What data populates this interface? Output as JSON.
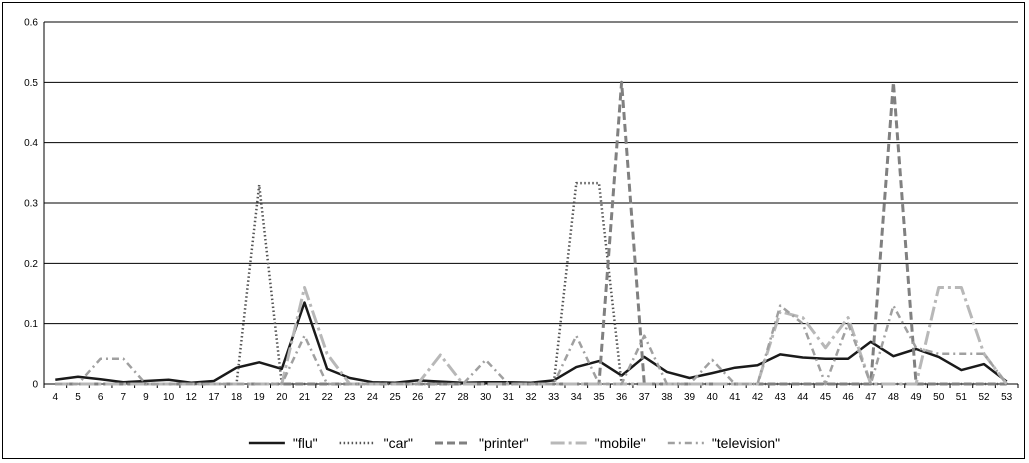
{
  "chart_data": {
    "type": "line",
    "title": "",
    "xlabel": "",
    "ylabel": "",
    "categories": [
      "4",
      "5",
      "6",
      "7",
      "9",
      "10",
      "12",
      "17",
      "18",
      "19",
      "20",
      "21",
      "22",
      "23",
      "24",
      "25",
      "26",
      "27",
      "28",
      "30",
      "31",
      "32",
      "33",
      "34",
      "35",
      "36",
      "37",
      "38",
      "39",
      "40",
      "41",
      "42",
      "43",
      "44",
      "45",
      "46",
      "47",
      "48",
      "49",
      "50",
      "51",
      "52",
      "53"
    ],
    "ylim": [
      0,
      0.6
    ],
    "yticks": [
      0,
      0.1,
      0.2,
      0.3,
      0.4,
      0.5,
      0.6
    ],
    "ytick_labels": [
      "0",
      "0.1",
      "0.2",
      "0.3",
      "0.4",
      "0.5",
      "0.6"
    ],
    "grid": "horizontal",
    "legend_position": "bottom",
    "series": [
      {
        "name": "\"flu\"",
        "color": "#1a1a1a",
        "style": "solid",
        "values": [
          0.007,
          0.012,
          0.008,
          0.003,
          0.005,
          0.007,
          0.002,
          0.005,
          0.027,
          0.036,
          0.025,
          0.135,
          0.025,
          0.01,
          0.003,
          0.002,
          0.006,
          0.004,
          0.002,
          0.003,
          0.003,
          0.002,
          0.006,
          0.028,
          0.038,
          0.014,
          0.045,
          0.02,
          0.01,
          0.018,
          0.027,
          0.031,
          0.049,
          0.044,
          0.042,
          0.042,
          0.07,
          0.046,
          0.058,
          0.045,
          0.023,
          0.033,
          0.004
        ]
      },
      {
        "name": "\"car\"",
        "color": "#555555",
        "style": "dotted",
        "values": [
          0,
          0,
          0,
          0,
          0,
          0,
          0,
          0,
          0,
          0.33,
          0,
          0,
          0,
          0,
          0,
          0,
          0,
          0,
          0,
          0,
          0,
          0,
          0,
          0.333,
          0.333,
          0,
          0,
          0,
          0,
          0,
          0,
          0,
          0,
          0,
          0,
          0,
          0,
          0,
          0,
          0,
          0,
          0,
          0
        ]
      },
      {
        "name": "\"printer\"",
        "color": "#808080",
        "style": "dashed",
        "values": [
          0,
          0,
          0,
          0,
          0,
          0,
          0,
          0,
          0,
          0,
          0,
          0,
          0,
          0,
          0,
          0,
          0,
          0,
          0,
          0,
          0,
          0,
          0,
          0,
          0,
          0.5,
          0,
          0,
          0,
          0,
          0,
          0,
          0,
          0,
          0,
          0,
          0,
          0.5,
          0,
          0,
          0,
          0,
          0
        ]
      },
      {
        "name": "\"mobile\"",
        "color": "#b8b8b8",
        "style": "longdash-dot",
        "values": [
          0,
          0,
          0,
          0,
          0,
          0,
          0,
          0,
          0,
          0,
          0,
          0.16,
          0.05,
          0,
          0,
          0,
          0,
          0.048,
          0,
          0,
          0,
          0,
          0,
          0,
          0,
          0,
          0,
          0,
          0,
          0,
          0,
          0,
          0.12,
          0.11,
          0.06,
          0.11,
          0,
          0,
          0,
          0.16,
          0.16,
          0.05,
          0
        ]
      },
      {
        "name": "\"television\"",
        "color": "#a0a0a0",
        "style": "dash-dot",
        "values": [
          0,
          0,
          0.042,
          0.042,
          0,
          0,
          0,
          0,
          0,
          0,
          0,
          0.08,
          0,
          0,
          0,
          0,
          0,
          0,
          0,
          0.04,
          0,
          0,
          0,
          0.08,
          0,
          0,
          0.08,
          0,
          0,
          0.04,
          0,
          0,
          0.13,
          0.1,
          0,
          0.1,
          0,
          0.13,
          0.06,
          0.05,
          0.05,
          0.05,
          0
        ]
      }
    ]
  }
}
